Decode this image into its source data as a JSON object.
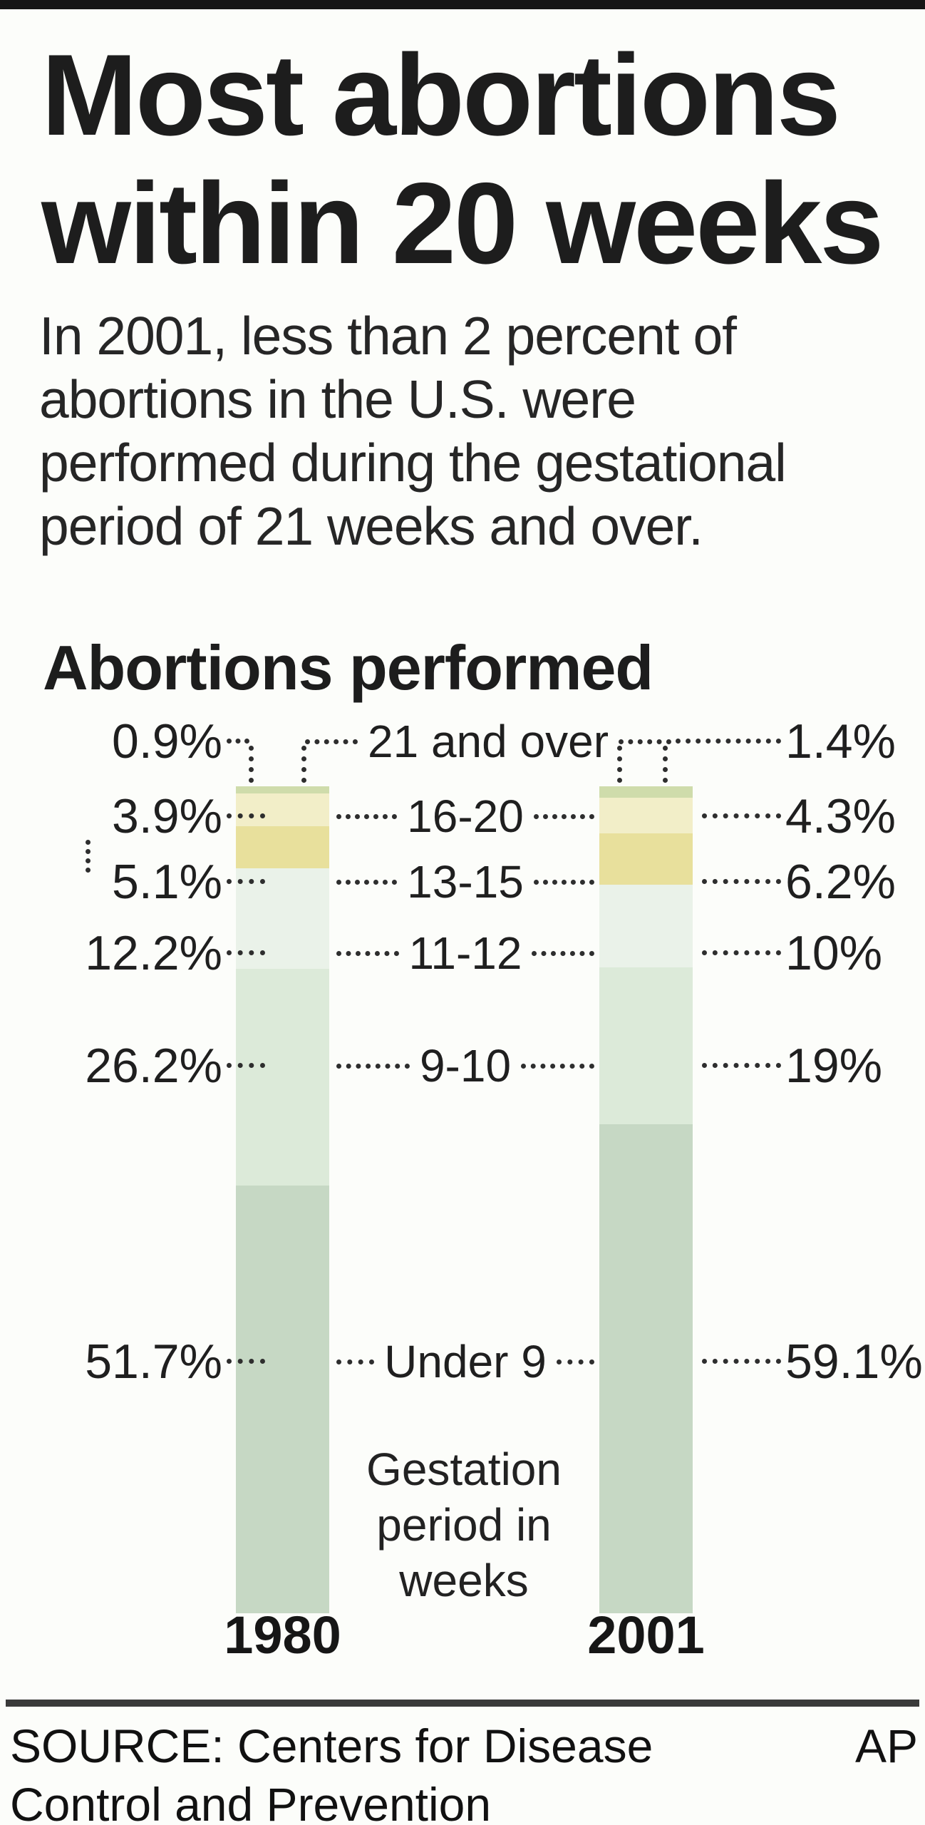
{
  "header": {
    "title_lines": [
      "Most abortions",
      "within 20 weeks"
    ],
    "intro_lines": [
      "In 2001, less than 2 percent of",
      "abortions in the U.S. were",
      "performed during the gestational",
      "period of 21 weeks and over."
    ]
  },
  "chart_data": {
    "type": "bar",
    "variant": "stacked-100pct-columns",
    "title": "Abortions performed",
    "categories": [
      "1980",
      "2001"
    ],
    "unit": "percent of abortions performed",
    "ylim": [
      0,
      100
    ],
    "legend_position": "inline-between-bars",
    "axis_note_lines": [
      "Gestation",
      "period in",
      "weeks"
    ],
    "segments": [
      {
        "gestation_weeks": "21 and over",
        "color": "#cfdcab",
        "values": [
          0.9,
          1.4
        ],
        "labels": [
          "0.9%",
          "1.4%"
        ]
      },
      {
        "gestation_weeks": "16-20",
        "color": "#f2eec8",
        "values": [
          3.9,
          4.3
        ],
        "labels": [
          "3.9%",
          "4.3%"
        ]
      },
      {
        "gestation_weeks": "13-15",
        "color": "#e8e09c",
        "values": [
          5.1,
          6.2
        ],
        "labels": [
          "5.1%",
          "6.2%"
        ]
      },
      {
        "gestation_weeks": "11-12",
        "color": "#eaf2e9",
        "values": [
          12.2,
          10
        ],
        "labels": [
          "12.2%",
          "10%"
        ]
      },
      {
        "gestation_weeks": "9-10",
        "color": "#dcead9",
        "values": [
          26.2,
          19
        ],
        "labels": [
          "26.2%",
          "19%"
        ]
      },
      {
        "gestation_weeks": "Under 9",
        "color": "#c6d8c4",
        "values": [
          51.7,
          59.1
        ],
        "labels": [
          "51.7%",
          "59.1%"
        ]
      }
    ]
  },
  "footer": {
    "source_lines": [
      "SOURCE: Centers for Disease",
      "Control and Prevention"
    ],
    "credit": "AP"
  }
}
